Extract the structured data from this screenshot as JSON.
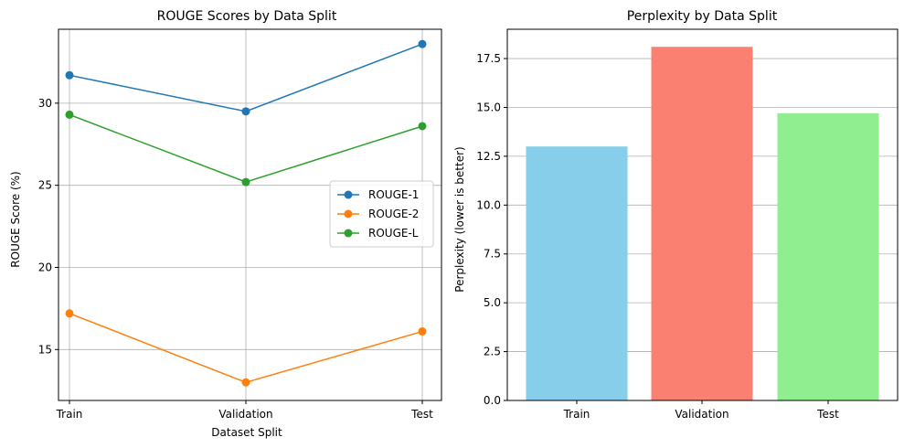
{
  "chart_data": [
    {
      "type": "line",
      "title": "ROUGE Scores by Data Split",
      "xlabel": "Dataset Split",
      "ylabel": "ROUGE Score (%)",
      "categories": [
        "Train",
        "Validation",
        "Test"
      ],
      "ylim": [
        11.9,
        34.5
      ],
      "yticks": [
        15,
        20,
        25,
        30
      ],
      "grid": true,
      "legend_position": "center-right",
      "markers": "circle",
      "series": [
        {
          "name": "ROUGE-1",
          "color": "#1f77b4",
          "values": [
            31.7,
            29.5,
            33.6
          ]
        },
        {
          "name": "ROUGE-2",
          "color": "#ff7f0e",
          "values": [
            17.2,
            13.0,
            16.1
          ]
        },
        {
          "name": "ROUGE-L",
          "color": "#2ca02c",
          "values": [
            29.3,
            25.2,
            28.6
          ]
        }
      ]
    },
    {
      "type": "bar",
      "title": "Perplexity by Data Split",
      "xlabel": "",
      "ylabel": "Perplexity (lower is better)",
      "categories": [
        "Train",
        "Validation",
        "Test"
      ],
      "values": [
        13.0,
        18.1,
        14.7
      ],
      "colors": [
        "#87ceeb",
        "#fa8072",
        "#90ee90"
      ],
      "ylim": [
        0,
        19.0
      ],
      "yticks": [
        0.0,
        2.5,
        5.0,
        7.5,
        10.0,
        12.5,
        15.0,
        17.5
      ],
      "grid": "y"
    }
  ]
}
